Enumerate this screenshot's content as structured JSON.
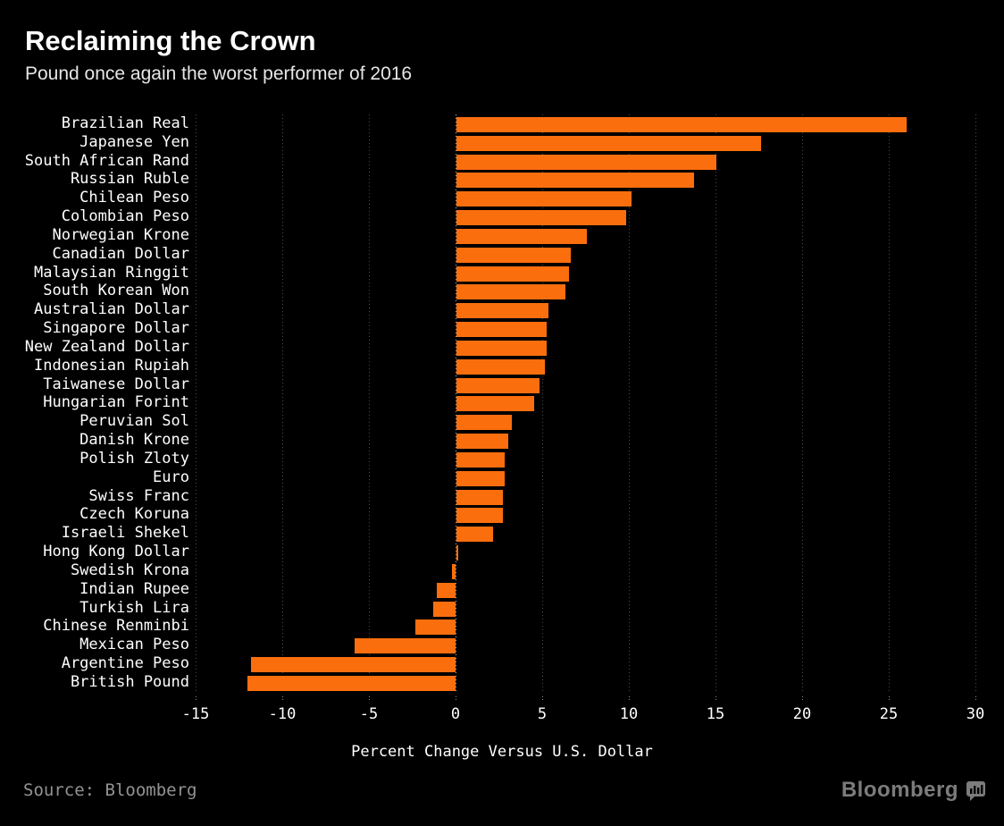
{
  "header": {
    "title": "Reclaiming the Crown",
    "subtitle": "Pound once again the worst performer of 2016"
  },
  "chart_data": {
    "type": "bar",
    "orientation": "horizontal",
    "title": "Reclaiming the Crown",
    "subtitle": "Pound once again the worst performer of 2016",
    "categories": [
      "Brazilian Real",
      "Japanese Yen",
      "South African Rand",
      "Russian Ruble",
      "Chilean Peso",
      "Colombian Peso",
      "Norwegian Krone",
      "Canadian Dollar",
      "Malaysian Ringgit",
      "South Korean Won",
      "Australian Dollar",
      "Singapore Dollar",
      "New Zealand Dollar",
      "Indonesian Rupiah",
      "Taiwanese Dollar",
      "Hungarian Forint",
      "Peruvian Sol",
      "Danish Krone",
      "Polish Zloty",
      "Euro",
      "Swiss Franc",
      "Czech Koruna",
      "Israeli Shekel",
      "Hong Kong Dollar",
      "Swedish Krona",
      "Indian Rupee",
      "Turkish Lira",
      "Chinese Renminbi",
      "Mexican Peso",
      "Argentine Peso",
      "British Pound"
    ],
    "values": [
      26.0,
      17.6,
      15.0,
      13.7,
      10.1,
      9.8,
      7.5,
      6.6,
      6.5,
      6.3,
      5.3,
      5.2,
      5.2,
      5.1,
      4.8,
      4.5,
      3.2,
      3.0,
      2.8,
      2.8,
      2.7,
      2.7,
      2.1,
      0.1,
      -0.2,
      -1.1,
      -1.3,
      -2.3,
      -5.8,
      -11.8,
      -12.0
    ],
    "xlabel": "Percent Change Versus U.S. Dollar",
    "x_ticks": [
      -15,
      -10,
      -5,
      0,
      5,
      10,
      15,
      20,
      25,
      30
    ],
    "xlim": [
      -15,
      30
    ],
    "grid": "dotted-vertical",
    "legend": "none",
    "bar_color": "#fb6e0e"
  },
  "footer": {
    "source": "Source: Bloomberg",
    "brand": "Bloomberg",
    "brand_icon": "bar-chart-speech-bubble-icon"
  }
}
